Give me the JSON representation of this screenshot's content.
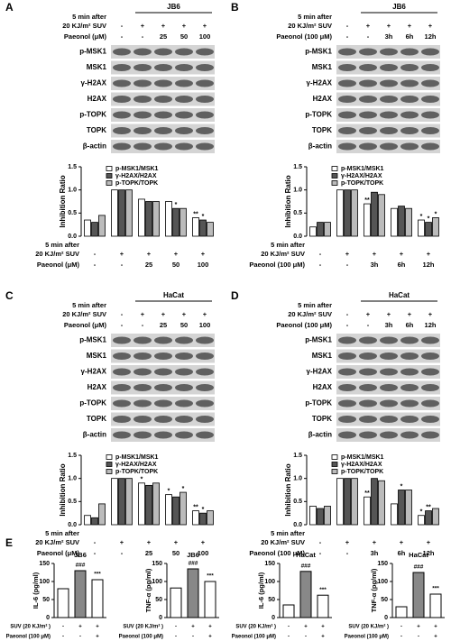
{
  "panels": [
    {
      "label": "A",
      "cell_line": "JB6",
      "conditions": [
        {
          "label": [
            "5 min after",
            "20 KJ/m² SUV"
          ],
          "values": [
            "-",
            "+",
            "+",
            "+",
            "+"
          ]
        },
        {
          "label": [
            "Paeonol (μM)"
          ],
          "values": [
            "-",
            "-",
            "25",
            "50",
            "100"
          ]
        }
      ],
      "blot_labels": [
        "p-MSK1",
        "MSK1",
        "γ-H2AX",
        "H2AX",
        "p-TOPK",
        "TOPK",
        "β-actin"
      ]
    },
    {
      "label": "B",
      "cell_line": "JB6",
      "conditions": [
        {
          "label": [
            "5 min after",
            "20 KJ/m² SUV"
          ],
          "values": [
            "-",
            "+",
            "+",
            "+",
            "+"
          ]
        },
        {
          "label": [
            "Paeonol (100 μM)"
          ],
          "values": [
            "-",
            "-",
            "3h",
            "6h",
            "12h"
          ]
        }
      ],
      "blot_labels": [
        "p-MSK1",
        "MSK1",
        "γ-H2AX",
        "H2AX",
        "p-TOPK",
        "TOPK",
        "β-actin"
      ]
    },
    {
      "label": "C",
      "cell_line": "HaCat",
      "conditions": [
        {
          "label": [
            "5 min after",
            "20 KJ/m² SUV"
          ],
          "values": [
            "-",
            "+",
            "+",
            "+",
            "+"
          ]
        },
        {
          "label": [
            "Paeonol (μM)"
          ],
          "values": [
            "-",
            "-",
            "25",
            "50",
            "100"
          ]
        }
      ],
      "blot_labels": [
        "p-MSK1",
        "MSK1",
        "γ-H2AX",
        "H2AX",
        "p-TOPK",
        "TOPK",
        "β-actin"
      ]
    },
    {
      "label": "D",
      "cell_line": "HaCat",
      "conditions": [
        {
          "label": [
            "5 min after",
            "20 KJ/m² SUV"
          ],
          "values": [
            "-",
            "+",
            "+",
            "+",
            "+"
          ]
        },
        {
          "label": [
            "Paeonol (100 μM)"
          ],
          "values": [
            "-",
            "-",
            "3h",
            "6h",
            "12h"
          ]
        }
      ],
      "blot_labels": [
        "p-MSK1",
        "MSK1",
        "γ-H2AX",
        "H2AX",
        "p-TOPK",
        "TOPK",
        "β-actin"
      ]
    }
  ],
  "panel_e": {
    "label": "E"
  },
  "chart_data": [
    {
      "type": "grouped",
      "ylabel": "Inhibition Ratio",
      "ylim": [
        0,
        1.5
      ],
      "yticks": [
        {
          "value": 0,
          "label": "0.0"
        },
        {
          "value": 0.5,
          "label": "0.5"
        },
        {
          "value": 1,
          "label": "1.0"
        },
        {
          "value": 1.5,
          "label": "1.5"
        }
      ],
      "series": [
        {
          "name": "p-MSK1/MSK1",
          "color": "#ffffff",
          "values": [
            0.35,
            1,
            0.8,
            0.75,
            0.4
          ],
          "stars": [
            null,
            null,
            null,
            null,
            "**"
          ]
        },
        {
          "name": "γ-H2AX/H2AX",
          "color": "#555555",
          "values": [
            0.3,
            1,
            0.75,
            0.6,
            0.35
          ],
          "stars": [
            null,
            null,
            null,
            "*",
            "*"
          ]
        },
        {
          "name": "p-TOPK/TOPK",
          "color": "#bbbbbb",
          "values": [
            0.45,
            1,
            0.75,
            0.6,
            0.3
          ],
          "stars": [
            null,
            null,
            null,
            null,
            null
          ]
        }
      ],
      "conditions": [
        {
          "label": [
            "5 min after",
            "20 KJ/m² SUV"
          ],
          "values": [
            "-",
            "+",
            "+",
            "+",
            "+"
          ]
        },
        {
          "label": [
            "Paeonol (μM)"
          ],
          "values": [
            "-",
            "-",
            "25",
            "50",
            "100"
          ]
        }
      ]
    },
    {
      "type": "grouped",
      "ylabel": "Inhibition Ratio",
      "ylim": [
        0,
        1.5
      ],
      "yticks": [
        {
          "value": 0,
          "label": "0.0"
        },
        {
          "value": 0.5,
          "label": "0.5"
        },
        {
          "value": 1,
          "label": "1.0"
        },
        {
          "value": 1.5,
          "label": "1.5"
        }
      ],
      "series": [
        {
          "name": "p-MSK1/MSK1",
          "color": "#ffffff",
          "values": [
            0.2,
            1,
            0.7,
            0.6,
            0.35
          ],
          "stars": [
            null,
            null,
            "**",
            null,
            "*"
          ]
        },
        {
          "name": "γ-H2AX/H2AX",
          "color": "#555555",
          "values": [
            0.3,
            1,
            0.95,
            0.65,
            0.3
          ],
          "stars": [
            null,
            null,
            null,
            null,
            "*"
          ]
        },
        {
          "name": "p-TOPK/TOPK",
          "color": "#bbbbbb",
          "values": [
            0.3,
            1,
            0.9,
            0.6,
            0.4
          ],
          "stars": [
            null,
            null,
            null,
            null,
            "*"
          ]
        }
      ],
      "conditions": [
        {
          "label": [
            "5 min after",
            "20 KJ/m² SUV"
          ],
          "values": [
            "-",
            "+",
            "+",
            "+",
            "+"
          ]
        },
        {
          "label": [
            "Paeonol (100 μM)"
          ],
          "values": [
            "-",
            "-",
            "3h",
            "6h",
            "12h"
          ]
        }
      ]
    },
    {
      "type": "grouped",
      "ylabel": "Inhibition Ratio",
      "ylim": [
        0,
        1.5
      ],
      "yticks": [
        {
          "value": 0,
          "label": "0.0"
        },
        {
          "value": 0.5,
          "label": "0.5"
        },
        {
          "value": 1,
          "label": "1.0"
        },
        {
          "value": 1.5,
          "label": "1.5"
        }
      ],
      "series": [
        {
          "name": "p-MSK1/MSK1",
          "color": "#ffffff",
          "values": [
            0.2,
            1,
            0.9,
            0.65,
            0.3
          ],
          "stars": [
            null,
            null,
            "*",
            "*",
            "**"
          ]
        },
        {
          "name": "γ-H2AX/H2AX",
          "color": "#555555",
          "values": [
            0.15,
            1,
            0.85,
            0.6,
            0.25
          ],
          "stars": [
            null,
            null,
            null,
            null,
            "*"
          ]
        },
        {
          "name": "p-TOPK/TOPK",
          "color": "#bbbbbb",
          "values": [
            0.45,
            1,
            0.9,
            0.7,
            0.3
          ],
          "stars": [
            null,
            null,
            null,
            "*",
            null
          ]
        }
      ],
      "conditions": [
        {
          "label": [
            "5 min after",
            "20 KJ/m² SUV"
          ],
          "values": [
            "-",
            "+",
            "+",
            "+",
            "+"
          ]
        },
        {
          "label": [
            "Paeonol (μM)"
          ],
          "values": [
            "-",
            "-",
            "25",
            "50",
            "100"
          ]
        }
      ]
    },
    {
      "type": "grouped",
      "ylabel": "Inhibition Ratio",
      "ylim": [
        0,
        1.5
      ],
      "yticks": [
        {
          "value": 0,
          "label": "0.0"
        },
        {
          "value": 0.5,
          "label": "0.5"
        },
        {
          "value": 1,
          "label": "1.0"
        },
        {
          "value": 1.5,
          "label": "1.5"
        }
      ],
      "series": [
        {
          "name": "p-MSK1/MSK1",
          "color": "#ffffff",
          "values": [
            0.4,
            1,
            0.6,
            0.45,
            0.2
          ],
          "stars": [
            null,
            null,
            "**",
            null,
            "*"
          ]
        },
        {
          "name": "γ-H2AX/H2AX",
          "color": "#555555",
          "values": [
            0.35,
            1,
            1.0,
            0.75,
            0.3
          ],
          "stars": [
            null,
            null,
            null,
            "*",
            "**"
          ]
        },
        {
          "name": "p-TOPK/TOPK",
          "color": "#bbbbbb",
          "values": [
            0.4,
            1,
            0.95,
            0.75,
            0.35
          ],
          "stars": [
            null,
            null,
            null,
            null,
            null
          ]
        }
      ],
      "conditions": [
        {
          "label": [
            "5 min after",
            "20 KJ/m² SUV"
          ],
          "values": [
            "-",
            "+",
            "+",
            "+",
            "+"
          ]
        },
        {
          "label": [
            "Paeonol (100 μM)"
          ],
          "values": [
            "-",
            "-",
            "3h",
            "6h",
            "12h"
          ]
        }
      ]
    },
    {
      "type": "bar",
      "title": "JB6",
      "ylabel": "IL-6 (pg/ml)",
      "ylim": [
        0,
        150
      ],
      "yticks": [
        0,
        50,
        100,
        150
      ],
      "values": [
        80,
        130,
        105
      ],
      "colors": [
        "#ffffff",
        "#888888",
        "#ffffff"
      ],
      "annotations": [
        null,
        "###",
        "***"
      ],
      "conditions": [
        {
          "label": [
            "SUV (20 KJ/m² )"
          ],
          "values": [
            "-",
            "+",
            "+"
          ]
        },
        {
          "label": [
            "Paeonol (100 μM)"
          ],
          "values": [
            "-",
            "-",
            "+"
          ]
        }
      ]
    },
    {
      "type": "bar",
      "title": "JB6",
      "ylabel": "TNF-α (pg/ml)",
      "ylim": [
        0,
        150
      ],
      "yticks": [
        0,
        50,
        100,
        150
      ],
      "values": [
        82,
        135,
        100
      ],
      "colors": [
        "#ffffff",
        "#888888",
        "#ffffff"
      ],
      "annotations": [
        null,
        "###",
        "***"
      ],
      "conditions": [
        {
          "label": [
            "SUV (20 KJ/m² )"
          ],
          "values": [
            "-",
            "+",
            "+"
          ]
        },
        {
          "label": [
            "Paeonol (100 μM)"
          ],
          "values": [
            "-",
            "-",
            "+"
          ]
        }
      ]
    },
    {
      "type": "bar",
      "title": "HaCat",
      "ylabel": "IL-6 (pg/ml)",
      "ylim": [
        0,
        150
      ],
      "yticks": [
        0,
        50,
        100,
        150
      ],
      "values": [
        35,
        128,
        62
      ],
      "colors": [
        "#ffffff",
        "#888888",
        "#ffffff"
      ],
      "annotations": [
        null,
        "###",
        "***"
      ],
      "conditions": [
        {
          "label": [
            "SUV (20 KJ/m² )"
          ],
          "values": [
            "-",
            "+",
            "+"
          ]
        },
        {
          "label": [
            "Paeonol (100 μM)"
          ],
          "values": [
            "-",
            "-",
            "+"
          ]
        }
      ]
    },
    {
      "type": "bar",
      "title": "HaCat",
      "ylabel": "TNF-α (pg/ml)",
      "ylim": [
        0,
        150
      ],
      "yticks": [
        0,
        50,
        100,
        150
      ],
      "values": [
        30,
        125,
        65
      ],
      "colors": [
        "#ffffff",
        "#888888",
        "#ffffff"
      ],
      "annotations": [
        null,
        "###",
        "***"
      ],
      "conditions": [
        {
          "label": [
            "SUV (20 KJ/m² )"
          ],
          "values": [
            "-",
            "+",
            "+"
          ]
        },
        {
          "label": [
            "Paeonol (100 μM)"
          ],
          "values": [
            "-",
            "-",
            "+"
          ]
        }
      ]
    }
  ]
}
